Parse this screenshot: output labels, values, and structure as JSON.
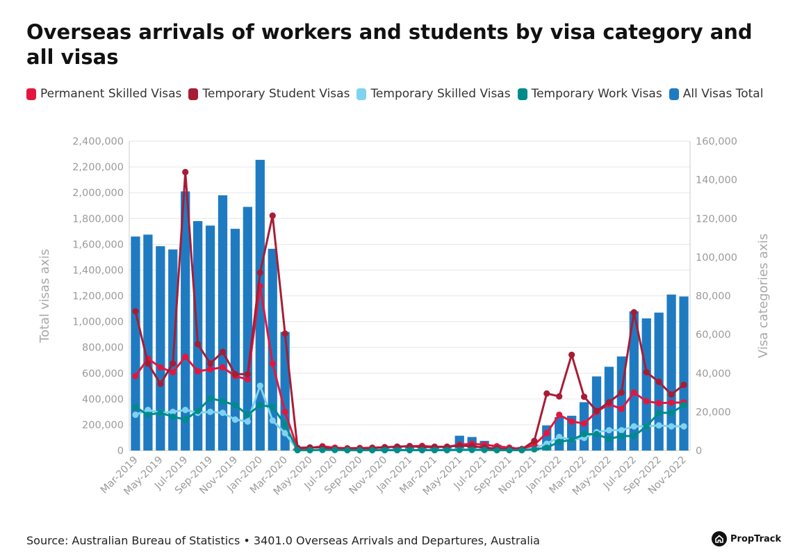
{
  "title": "Overseas arrivals of workers and students by visa category and all visas",
  "source": "Source: Australian Bureau of Statistics • 3401.0 Overseas Arrivals and Departures, Australia",
  "brand": "PropTrack",
  "brand_icon": "house-icon",
  "chart_data": {
    "type": "bar+line",
    "categories": [
      "Mar-2019",
      "Apr-2019",
      "May-2019",
      "Jun-2019",
      "Jul-2019",
      "Aug-2019",
      "Sep-2019",
      "Oct-2019",
      "Nov-2019",
      "Dec-2019",
      "Jan-2020",
      "Feb-2020",
      "Mar-2020",
      "Apr-2020",
      "May-2020",
      "Jun-2020",
      "Jul-2020",
      "Aug-2020",
      "Sep-2020",
      "Oct-2020",
      "Nov-2020",
      "Dec-2020",
      "Jan-2021",
      "Feb-2021",
      "Mar-2021",
      "Apr-2021",
      "May-2021",
      "Jun-2021",
      "Jul-2021",
      "Aug-2021",
      "Sep-2021",
      "Oct-2021",
      "Nov-2021",
      "Dec-2021",
      "Jan-2022",
      "Feb-2022",
      "Mar-2022",
      "Apr-2022",
      "May-2022",
      "Jun-2022",
      "Jul-2022",
      "Aug-2022",
      "Sep-2022",
      "Oct-2022",
      "Nov-2022"
    ],
    "tick_labels": [
      "Mar-2019",
      "May-2019",
      "Jul-2019",
      "Sep-2019",
      "Nov-2019",
      "Jan-2020",
      "Mar-2020",
      "May-2020",
      "Jul-2020",
      "Sep-2020",
      "Nov-2020",
      "Jan-2021",
      "Mar-2021",
      "May-2021",
      "Jul-2021",
      "Sep-2021",
      "Nov-2021",
      "Jan-2022",
      "Mar-2022",
      "May-2022",
      "Jul-2022",
      "Sep-2022",
      "Nov-2022"
    ],
    "left_axis": {
      "label": "Total visas axis",
      "range": [
        0,
        2400000
      ],
      "ticks": [
        "0",
        "200,000",
        "400,000",
        "600,000",
        "800,000",
        "1,000,000",
        "1,200,000",
        "1,400,000",
        "1,600,000",
        "1,800,000",
        "2,000,000",
        "2,200,000",
        "2,400,000"
      ]
    },
    "right_axis": {
      "label": "Visa categories axis",
      "range": [
        0,
        160000
      ],
      "ticks": [
        "0",
        "20,000",
        "40,000",
        "60,000",
        "80,000",
        "100,000",
        "120,000",
        "140,000",
        "160,000"
      ]
    },
    "grid": true,
    "legend_position": "top-left",
    "bar_series": {
      "name": "All Visas Total",
      "axis": "left",
      "color": "#1f7bc1",
      "values": [
        1660000,
        1675000,
        1585000,
        1560000,
        2010000,
        1780000,
        1745000,
        1980000,
        1720000,
        1890000,
        2255000,
        1565000,
        920000,
        15000,
        12000,
        13000,
        15000,
        16000,
        18000,
        20000,
        22000,
        24000,
        25000,
        26000,
        30000,
        35000,
        115000,
        105000,
        75000,
        45000,
        30000,
        28000,
        45000,
        195000,
        260000,
        270000,
        375000,
        575000,
        650000,
        730000,
        1080000,
        1025000,
        1070000,
        1210000,
        1195000
      ]
    },
    "line_series": [
      {
        "name": "Permanent Skilled Visas",
        "axis": "right",
        "color": "#e3173e",
        "values": [
          38500,
          47500,
          43000,
          40500,
          48500,
          41000,
          42000,
          43000,
          38500,
          36800,
          85000,
          45000,
          20000,
          1200,
          1300,
          2200,
          1500,
          1200,
          1300,
          1500,
          1700,
          2000,
          2200,
          2400,
          2000,
          1900,
          3000,
          3500,
          3000,
          2200,
          1500,
          800,
          3000,
          9000,
          18500,
          15000,
          14000,
          20000,
          24000,
          21500,
          30000,
          25500,
          24500,
          24800,
          24800
        ]
      },
      {
        "name": "Temporary Student Visas",
        "axis": "right",
        "color": "#a81c35",
        "values": [
          72000,
          45000,
          34500,
          45000,
          144000,
          55000,
          45000,
          51000,
          39500,
          39500,
          92000,
          121500,
          60500,
          1400,
          1600,
          1600,
          800,
          700,
          800,
          1200,
          1700,
          2000,
          2300,
          1800,
          1800,
          2000,
          2500,
          2300,
          1500,
          900,
          700,
          600,
          5000,
          29500,
          28000,
          49500,
          27800,
          20500,
          25000,
          30000,
          71500,
          40500,
          35500,
          29000,
          34000
        ]
      },
      {
        "name": "Temporary Skilled Visas",
        "axis": "right",
        "color": "#7fd3f0",
        "values": [
          18500,
          21000,
          19500,
          20000,
          21000,
          19500,
          20000,
          19500,
          16000,
          15000,
          33500,
          15500,
          9000,
          300,
          300,
          300,
          300,
          300,
          300,
          300,
          300,
          300,
          300,
          300,
          300,
          300,
          600,
          500,
          500,
          400,
          400,
          400,
          1500,
          3500,
          7000,
          5500,
          6500,
          9500,
          10500,
          10500,
          12500,
          12500,
          13000,
          12500,
          12500
        ]
      },
      {
        "name": "Temporary Work Visas",
        "axis": "right",
        "color": "#008b8b",
        "values": [
          22500,
          18500,
          19500,
          17500,
          16000,
          20500,
          27000,
          25500,
          23500,
          18500,
          23500,
          22500,
          13500,
          200,
          200,
          300,
          300,
          200,
          200,
          200,
          200,
          200,
          200,
          200,
          200,
          200,
          300,
          300,
          300,
          200,
          200,
          200,
          600,
          1500,
          4500,
          5500,
          8500,
          8500,
          6000,
          7500,
          7500,
          12500,
          19500,
          19500,
          23500
        ]
      }
    ]
  }
}
